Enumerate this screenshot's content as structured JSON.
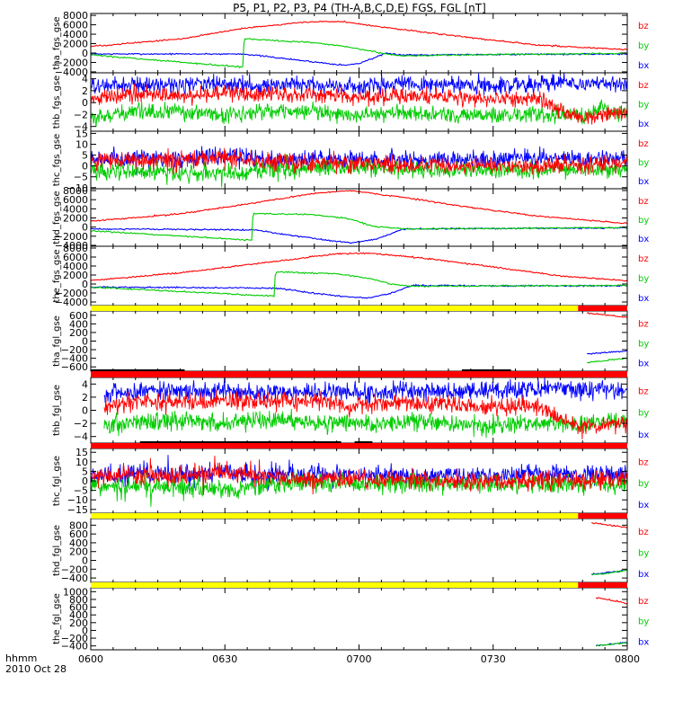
{
  "title": "P5, P1, P2, P3, P4 (TH-A,B,C,D,E) FGS, FGL [nT]",
  "footer": {
    "label1": "hhmm",
    "label2": "2010 Oct 28"
  },
  "colors": {
    "bx": "#0000ff",
    "by": "#00cc00",
    "bz": "#ff0000",
    "bar_yellow": "#ffff00",
    "bar_red": "#ff0000",
    "bar_black": "#000000"
  },
  "chart_data": {
    "type": "line",
    "x_axis": {
      "start": "06:00",
      "end": "08:00",
      "tick_labels": [
        "0600",
        "0630",
        "0700",
        "0730",
        "0800"
      ],
      "tick_minutes": [
        0,
        30,
        60,
        90,
        120
      ]
    },
    "legend": [
      "bz",
      "by",
      "bx"
    ],
    "panels": [
      {
        "ylabel": "tha_fgs_gse",
        "ylim": [
          -4200,
          8400
        ],
        "yticks": [
          -4000,
          -2000,
          0,
          2000,
          4000,
          6000,
          8000
        ],
        "tick_labels": [
          "−4000",
          "−2000",
          "0",
          "2000",
          "4000",
          "6000",
          "8000"
        ],
        "series": [
          {
            "name": "bz",
            "x": [
              0,
              20,
              34,
              48,
              56,
              66,
              80,
              100,
              120
            ],
            "y": [
              1400,
              3000,
              5200,
              6600,
              6700,
              5400,
              3800,
              1700,
              700
            ]
          },
          {
            "name": "by",
            "x": [
              0,
              34,
              34.3,
              50,
              57,
              66,
              70,
              90,
              120
            ],
            "y": [
              -400,
              -3000,
              3000,
              2200,
              1400,
              -200,
              -600,
              -300,
              -100
            ]
          },
          {
            "name": "bx",
            "x": [
              0,
              34,
              34.3,
              50,
              57,
              60,
              66,
              70,
              90,
              120
            ],
            "y": [
              -200,
              -200,
              -200,
              -1900,
              -2600,
              -2200,
              -100,
              -400,
              -300,
              -200
            ]
          }
        ]
      },
      {
        "ylabel": "thb_fgs_gse",
        "ylim": [
          -4.8,
          5
        ],
        "yticks": [
          -4,
          -2,
          0,
          2,
          4
        ],
        "tick_labels": [
          "−4",
          "−2",
          "0",
          "2",
          "4"
        ],
        "series": [
          {
            "name": "bz",
            "x": [
              0,
              10,
              20,
              30,
              40,
              50,
              60,
              70,
              80,
              90,
              100,
              105,
              110,
              115,
              120
            ],
            "y": [
              0.5,
              1.5,
              1.2,
              1.6,
              1.3,
              1.5,
              0.8,
              1.2,
              1.0,
              0.6,
              0.8,
              -1.2,
              -2.6,
              -2.2,
              -1.6
            ]
          },
          {
            "name": "by",
            "x": [
              0,
              10,
              20,
              30,
              40,
              50,
              60,
              70,
              80,
              90,
              100,
              110,
              115,
              120
            ],
            "y": [
              -2.6,
              -1.6,
              -1.5,
              -1.9,
              -1.4,
              -1.6,
              -2.1,
              -1.7,
              -2.0,
              -2.2,
              -1.9,
              -2.2,
              -1.2,
              -1.6
            ]
          },
          {
            "name": "bx",
            "x": [
              0,
              10,
              20,
              30,
              40,
              50,
              60,
              70,
              80,
              90,
              100,
              105,
              110,
              115,
              120
            ],
            "y": [
              2.6,
              3.0,
              3.0,
              3.2,
              2.8,
              3.0,
              2.7,
              3.0,
              3.0,
              3.0,
              3.2,
              3.6,
              3.1,
              3.3,
              3.2
            ]
          }
        ]
      },
      {
        "ylabel": "thc_fgs_gse",
        "ylim": [
          -10.5,
          16
        ],
        "yticks": [
          -10,
          -5,
          0,
          5,
          10,
          15
        ],
        "tick_labels": [
          "−10",
          "−5",
          "0",
          "5",
          "10",
          "15"
        ],
        "series": [
          {
            "name": "bz",
            "x": [
              0,
              10,
              20,
              30,
              40,
              50,
              60,
              70,
              80,
              90,
              100,
              110,
              120
            ],
            "y": [
              2,
              3,
              2,
              4,
              2,
              1,
              1,
              0.5,
              0,
              0,
              0,
              0.5,
              1
            ]
          },
          {
            "name": "by",
            "x": [
              0,
              10,
              20,
              30,
              40,
              50,
              60,
              70,
              80,
              90,
              100,
              110,
              120
            ],
            "y": [
              -2,
              -3,
              -3,
              -4,
              -2,
              -1,
              -1,
              -1.5,
              -2,
              -2,
              -2,
              -1.5,
              -2
            ]
          },
          {
            "name": "bx",
            "x": [
              0,
              10,
              20,
              30,
              40,
              50,
              60,
              70,
              80,
              90,
              100,
              110,
              120
            ],
            "y": [
              3,
              4,
              3,
              5,
              3,
              3,
              3,
              3,
              3,
              3,
              4,
              3,
              3
            ]
          }
        ]
      },
      {
        "ylabel": "thd_fgs_gse",
        "ylim": [
          -4200,
          8400
        ],
        "yticks": [
          -4000,
          -2000,
          0,
          2000,
          4000,
          6000,
          8000
        ],
        "tick_labels": [
          "−4000",
          "−2000",
          "0",
          "2000",
          "4000",
          "6000",
          "8000"
        ],
        "series": [
          {
            "name": "bz",
            "x": [
              0,
              20,
              36,
              50,
              58,
              70,
              85,
              100,
              120
            ],
            "y": [
              1300,
              2900,
              5200,
              7400,
              8000,
              6500,
              4300,
              2400,
              800
            ]
          },
          {
            "name": "by",
            "x": [
              0,
              36,
              36.3,
              50,
              58,
              63,
              70,
              90,
              120
            ],
            "y": [
              -800,
              -2900,
              3000,
              2700,
              1800,
              200,
              -400,
              -300,
              -100
            ]
          },
          {
            "name": "bx",
            "x": [
              0,
              36,
              36.3,
              50,
              58,
              64,
              70,
              90,
              120
            ],
            "y": [
              -400,
              -600,
              -600,
              -2500,
              -3500,
              -2600,
              -400,
              -300,
              -200
            ]
          }
        ]
      },
      {
        "ylabel": "the_fgs_gse",
        "ylim": [
          -4800,
          8400
        ],
        "yticks": [
          -4000,
          -2000,
          0,
          2000,
          4000,
          6000,
          8000
        ],
        "tick_labels": [
          "−4000",
          "−2000",
          "0",
          "2000",
          "4000",
          "6000",
          "8000"
        ],
        "series": [
          {
            "name": "bz",
            "x": [
              0,
              20,
              41,
              55,
              62,
              75,
              90,
              105,
              120
            ],
            "y": [
              800,
              2500,
              5000,
              6700,
              6900,
              5700,
              3800,
              1800,
              700
            ]
          },
          {
            "name": "by",
            "x": [
              0,
              41,
              41.3,
              55,
              62,
              67,
              72,
              90,
              120
            ],
            "y": [
              -700,
              -2700,
              2700,
              2300,
              1300,
              0,
              -500,
              -400,
              -300
            ]
          },
          {
            "name": "bx",
            "x": [
              0,
              41,
              41.3,
              55,
              62,
              67,
              72,
              90,
              120
            ],
            "y": [
              -700,
              -900,
              -900,
              -2700,
              -3100,
              -2100,
              -300,
              -400,
              -400
            ]
          }
        ]
      },
      {
        "ylabel": "tha_fgl_gse",
        "ylim": [
          -700,
          700
        ],
        "yticks": [
          -600,
          -400,
          -200,
          0,
          200,
          400,
          600
        ],
        "tick_labels": [
          "−600",
          "−400",
          "−200",
          "0",
          "200",
          "400",
          "600"
        ],
        "series": [
          {
            "name": "bz",
            "x": [
              111,
              120
            ],
            "y": [
              650,
              550
            ]
          },
          {
            "name": "by",
            "x": [
              111,
              120
            ],
            "y": [
              -500,
              -400
            ]
          },
          {
            "name": "bx",
            "x": [
              111,
              120
            ],
            "y": [
              -300,
              -230
            ]
          }
        ]
      },
      {
        "ylabel": "thb_fgl_gse",
        "ylim": [
          -5,
          5
        ],
        "yticks": [
          -4,
          -2,
          0,
          2,
          4
        ],
        "tick_labels": [
          "−4",
          "−2",
          "0",
          "2",
          "4"
        ],
        "series": [
          {
            "name": "bz",
            "x": [
              3,
              10,
              20,
              30,
              40,
              50,
              60,
              70,
              80,
              90,
              100,
              105,
              110,
              115,
              120
            ],
            "y": [
              0.5,
              1.3,
              1.0,
              1.5,
              1.3,
              1.4,
              0.7,
              1.1,
              0.9,
              0.5,
              0.7,
              -1.3,
              -2.8,
              -2.4,
              -1.7
            ]
          },
          {
            "name": "by",
            "x": [
              3,
              10,
              20,
              30,
              40,
              50,
              60,
              70,
              80,
              90,
              100,
              110,
              115,
              120
            ],
            "y": [
              -2.6,
              -1.7,
              -1.6,
              -2.0,
              -1.5,
              -1.7,
              -2.2,
              -1.8,
              -2.1,
              -2.3,
              -2.0,
              -2.3,
              -1.3,
              -1.7
            ]
          },
          {
            "name": "bx",
            "x": [
              3,
              10,
              20,
              30,
              40,
              50,
              60,
              70,
              80,
              90,
              100,
              105,
              110,
              115,
              120
            ],
            "y": [
              2.4,
              2.9,
              2.9,
              3.1,
              2.7,
              2.9,
              2.6,
              2.9,
              2.9,
              2.9,
              3.1,
              3.5,
              3.0,
              3.2,
              3.1
            ]
          }
        ]
      },
      {
        "ylabel": "thc_fgl_gse",
        "ylim": [
          -17,
          17
        ],
        "yticks": [
          -15,
          -10,
          -5,
          0,
          5,
          10,
          15
        ],
        "tick_labels": [
          "−15",
          "−10",
          "−5",
          "0",
          "5",
          "10",
          "15"
        ],
        "series": [
          {
            "name": "bz",
            "x": [
              0,
              10,
              20,
              30,
              40,
              50,
              60,
              70,
              80,
              90,
              100,
              110,
              120
            ],
            "y": [
              2,
              4,
              2,
              5,
              2,
              1,
              1,
              0.5,
              0,
              0,
              0,
              0.5,
              1
            ]
          },
          {
            "name": "by",
            "x": [
              0,
              10,
              20,
              30,
              40,
              50,
              60,
              70,
              80,
              90,
              100,
              110,
              120
            ],
            "y": [
              -2,
              -3,
              -3,
              -5,
              -2,
              -1,
              -1,
              -1.5,
              -2,
              -2,
              -2,
              -1.5,
              -2
            ]
          },
          {
            "name": "bx",
            "x": [
              0,
              10,
              20,
              30,
              40,
              50,
              60,
              70,
              80,
              90,
              100,
              110,
              120
            ],
            "y": [
              3,
              4,
              3,
              5,
              3,
              3,
              3,
              3,
              3,
              3,
              4,
              3,
              3
            ]
          }
        ]
      },
      {
        "ylabel": "thd_fgl_gse",
        "ylim": [
          -500,
          950
        ],
        "yticks": [
          -400,
          -200,
          0,
          200,
          400,
          600,
          800
        ],
        "tick_labels": [
          "−400",
          "−200",
          "0",
          "200",
          "400",
          "600",
          "800"
        ],
        "series": [
          {
            "name": "bz",
            "x": [
              112,
              120
            ],
            "y": [
              850,
              750
            ]
          },
          {
            "name": "by",
            "x": [
              112,
              120
            ],
            "y": [
              -330,
              -230
            ]
          },
          {
            "name": "bx",
            "x": [
              112,
              120
            ],
            "y": [
              -320,
              -220
            ]
          }
        ]
      },
      {
        "ylabel": "the_fgl_gse",
        "ylim": [
          -500,
          1100
        ],
        "yticks": [
          -400,
          -200,
          0,
          200,
          400,
          600,
          800,
          1000
        ],
        "tick_labels": [
          "−400",
          "−200",
          "0",
          "200",
          "400",
          "600",
          "800",
          "1000"
        ],
        "series": [
          {
            "name": "bz",
            "x": [
              113,
              120
            ],
            "y": [
              850,
              700
            ]
          },
          {
            "name": "by",
            "x": [
              113,
              120
            ],
            "y": [
              -400,
              -320
            ]
          },
          {
            "name": "bx",
            "x": [
              113,
              120
            ],
            "y": [
              -390,
              -310
            ]
          }
        ]
      }
    ],
    "mode_bars": [
      {
        "after_panel": 4,
        "segments": [
          {
            "from": 0,
            "to": 109,
            "color": "bar_yellow"
          },
          {
            "from": 109,
            "to": 120,
            "color": "bar_red"
          }
        ]
      },
      {
        "after_panel": 5,
        "segments": [
          {
            "from": 0,
            "to": 120,
            "color": "bar_red"
          }
        ],
        "black_marks": [
          {
            "from": 0,
            "to": 21
          },
          {
            "from": 83,
            "to": 94
          }
        ]
      },
      {
        "after_panel": 6,
        "segments": [
          {
            "from": 0,
            "to": 120,
            "color": "bar_red"
          }
        ],
        "black_marks": [
          {
            "from": 11,
            "to": 56
          },
          {
            "from": 59,
            "to": 63
          }
        ]
      },
      {
        "after_panel": 7,
        "segments": [
          {
            "from": 0,
            "to": 109,
            "color": "bar_yellow"
          },
          {
            "from": 109,
            "to": 120,
            "color": "bar_red"
          }
        ]
      },
      {
        "after_panel": 8,
        "segments": [
          {
            "from": 0,
            "to": 109,
            "color": "bar_yellow"
          },
          {
            "from": 109,
            "to": 120,
            "color": "bar_red"
          }
        ]
      }
    ]
  }
}
